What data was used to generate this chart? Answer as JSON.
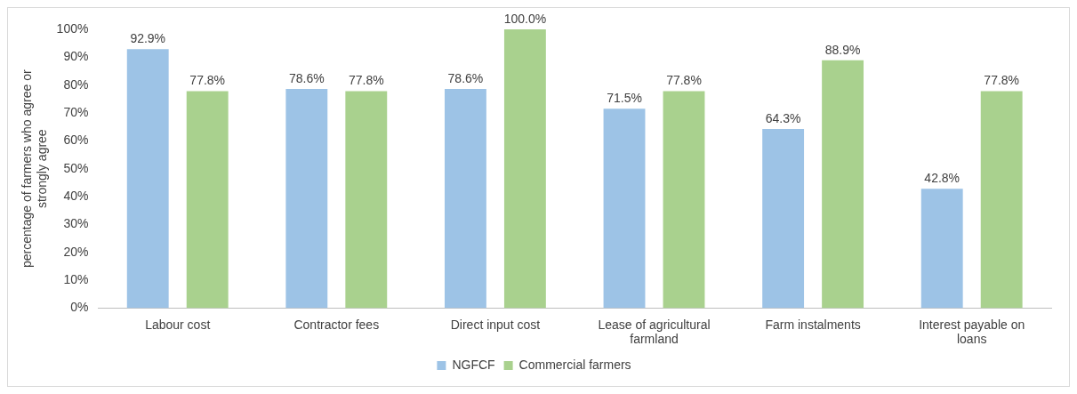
{
  "chart_data": {
    "type": "bar",
    "ylabel": "percentage of farmers who agree or strongly agree",
    "categories": [
      "Labour cost",
      "Contractor fees",
      "Direct input cost",
      "Lease of agricultural farmland",
      "Farm instalments",
      "Interest payable on loans"
    ],
    "series": [
      {
        "name": "NGFCF",
        "color": "#9dc3e6",
        "values": [
          92.9,
          78.6,
          78.6,
          71.5,
          64.3,
          42.8
        ],
        "value_labels": [
          "92.9%",
          "78.6%",
          "78.6%",
          "71.5%",
          "64.3%",
          "42.8%"
        ]
      },
      {
        "name": "Commercial farmers",
        "color": "#a9d18e",
        "values": [
          77.8,
          77.8,
          100.0,
          77.8,
          88.9,
          77.8
        ],
        "value_labels": [
          "77.8%",
          "77.8%",
          "100.0%",
          "77.8%",
          "88.9%",
          "77.8%"
        ]
      }
    ],
    "ylim": [
      0,
      100
    ],
    "yticks": [
      {
        "value": 0,
        "label": "0%"
      },
      {
        "value": 10,
        "label": "10%"
      },
      {
        "value": 20,
        "label": "20%"
      },
      {
        "value": 30,
        "label": "30%"
      },
      {
        "value": 40,
        "label": "40%"
      },
      {
        "value": 50,
        "label": "50%"
      },
      {
        "value": 60,
        "label": "60%"
      },
      {
        "value": 70,
        "label": "70%"
      },
      {
        "value": 80,
        "label": "80%"
      },
      {
        "value": 90,
        "label": "90%"
      },
      {
        "value": 100,
        "label": "100%"
      }
    ],
    "grid": false,
    "legend": "bottom"
  }
}
